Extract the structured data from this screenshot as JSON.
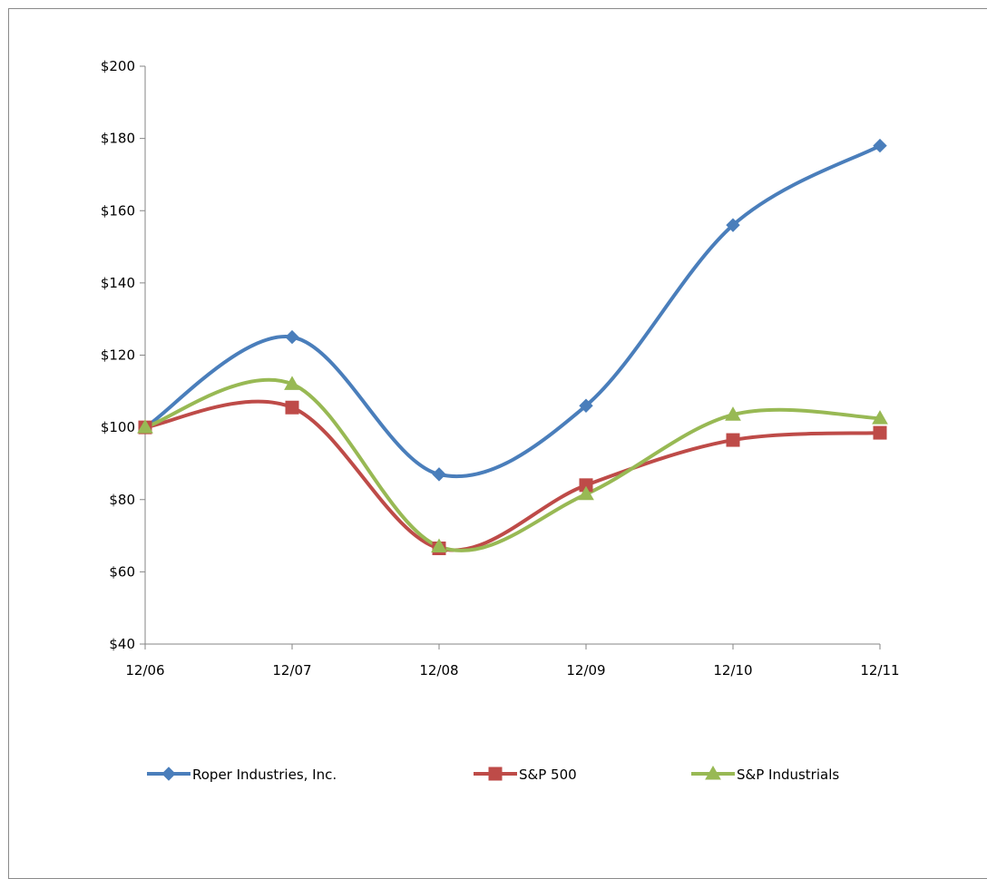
{
  "chart_data": {
    "type": "line",
    "categories": [
      "12/06",
      "12/07",
      "12/08",
      "12/09",
      "12/10",
      "12/11"
    ],
    "y_ticks": [
      "$40",
      "$60",
      "$80",
      "$100",
      "$120",
      "$140",
      "$160",
      "$180",
      "$200"
    ],
    "ylim": [
      40,
      200
    ],
    "y_step": 20,
    "smoothed": true,
    "grid": false,
    "legend_position": "bottom",
    "series": [
      {
        "name": "Roper Industries, Inc.",
        "values": [
          100,
          125,
          87,
          106,
          156,
          178
        ],
        "color": "#4a7ebb",
        "marker": "diamond"
      },
      {
        "name": "S&P 500",
        "values": [
          100,
          105.5,
          66.5,
          84,
          96.5,
          98.5
        ],
        "color": "#be4b48",
        "marker": "square"
      },
      {
        "name": "S&P Industrials",
        "values": [
          100,
          112,
          67,
          81.5,
          103.5,
          102.5
        ],
        "color": "#98b954",
        "marker": "triangle"
      }
    ]
  }
}
